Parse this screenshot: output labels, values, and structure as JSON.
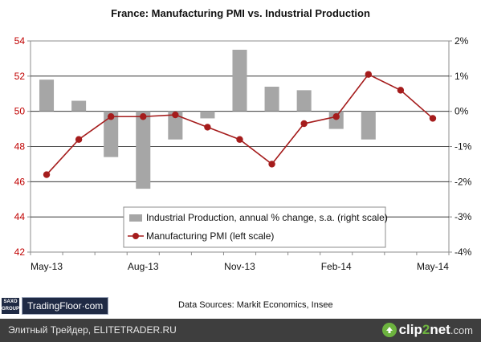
{
  "header": {
    "title": "France: Manufacturing PMI vs. Industrial Production"
  },
  "chart_data": {
    "type": "bar+line",
    "title": "France: Manufacturing PMI vs. Industrial Production",
    "categories": [
      "May-13",
      "Jun-13",
      "Jul-13",
      "Aug-13",
      "Sep-13",
      "Oct-13",
      "Nov-13",
      "Dec-13",
      "Jan-14",
      "Feb-14",
      "Mar-14",
      "Apr-14",
      "May-14"
    ],
    "x_tick_labels": [
      "May-13",
      "Aug-13",
      "Nov-13",
      "Feb-14",
      "May-14"
    ],
    "left_axis": {
      "ticks": [
        "42",
        "44",
        "46",
        "48",
        "50",
        "52",
        "54"
      ],
      "ylim": [
        42,
        54
      ],
      "color": "#c00000"
    },
    "right_axis": {
      "ticks": [
        "-4%",
        "-3%",
        "-2%",
        "-1%",
        "0%",
        "1%",
        "2%"
      ],
      "ylim": [
        -4,
        2
      ]
    },
    "grid": "horizontal",
    "series": [
      {
        "name": "Industrial Production, annual % change, s.a. (right scale)",
        "type": "bar",
        "axis": "right",
        "color": "#a6a6a6",
        "values": [
          0.9,
          0.3,
          -1.3,
          -2.2,
          -0.8,
          -0.2,
          1.75,
          0.7,
          0.6,
          -0.5,
          -0.8,
          null,
          null
        ]
      },
      {
        "name": "Manufacturing PMI (left scale)",
        "type": "line",
        "axis": "left",
        "color": "#a51c1c",
        "values": [
          46.4,
          48.4,
          49.7,
          49.7,
          49.8,
          49.1,
          48.4,
          47.0,
          49.3,
          49.7,
          52.1,
          51.2,
          49.6
        ]
      }
    ],
    "legend": "inside-bottom-right"
  },
  "footer_logo": {
    "brand_top": "SAXO",
    "brand_bottom": "GROUP",
    "site": "TradingFloor·com"
  },
  "source": "Data Sources: Markit Economics, Insee",
  "watermark": {
    "left_text": "Элитный Трейдер, ELITETRADER.RU",
    "brand_clip": "clip",
    "brand_two": "2",
    "brand_net": "net",
    "brand_com": ".com"
  }
}
